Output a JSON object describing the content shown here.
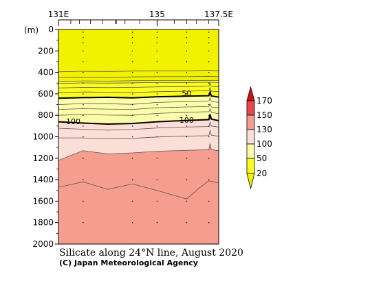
{
  "chart_data": {
    "type": "contour",
    "title": "Silicate along 24°N line, August 2020",
    "credit": "(C) Japan Meteorological Agency",
    "ylabel": "(m)",
    "x_range": [
      131,
      137.5
    ],
    "x_ticks": [
      {
        "value": 131,
        "label": "131E"
      },
      {
        "value": 135,
        "label": "135"
      },
      {
        "value": 137.5,
        "label": "137.5E"
      }
    ],
    "y_range": [
      0,
      2000
    ],
    "y_ticks": [
      0,
      200,
      400,
      600,
      800,
      1000,
      1200,
      1400,
      1600,
      1800,
      2000
    ],
    "station_longitudes": [
      132,
      134,
      135,
      136.2,
      137.1
    ],
    "station_marks_top": [
      131,
      131.5,
      131.85,
      132.3,
      132.8,
      133.3,
      133.35,
      133.7,
      134.3,
      135,
      135.7,
      136.2,
      136.6,
      137.1
    ],
    "sample_depths": [
      25,
      75,
      125,
      200,
      300,
      400,
      500,
      600,
      700,
      800,
      900,
      1000,
      1200,
      1400,
      1600,
      1800,
      2000
    ],
    "levels": [
      20,
      50,
      100,
      130,
      150,
      170
    ],
    "colors": {
      "below_20": "#f2f200",
      "20_50": "#fcfc20",
      "50_100": "#fcfcaa",
      "100_130": "#fcded8",
      "130_150": "#f59e8f",
      "150_170": "#e84848",
      "above_170": "#d41010"
    },
    "legend": {
      "labels": [
        "170",
        "150",
        "130",
        "100",
        "50",
        "20"
      ]
    },
    "boundaries": [
      {
        "fill_below": "#fcfc20",
        "points": [
          [
            131,
            485
          ],
          [
            132,
            480
          ],
          [
            133,
            482
          ],
          [
            134,
            478
          ],
          [
            135,
            476
          ],
          [
            136.2,
            476
          ],
          [
            137.1,
            475
          ],
          [
            137.5,
            475
          ]
        ]
      },
      {
        "fill_below": "#fcfcaa",
        "bold": true,
        "points": [
          [
            131,
            640
          ],
          [
            132,
            635
          ],
          [
            133,
            632
          ],
          [
            134,
            637
          ],
          [
            135,
            627
          ],
          [
            136.2,
            622
          ],
          [
            137.1,
            618
          ],
          [
            137.15,
            582
          ],
          [
            137.2,
            620
          ],
          [
            137.5,
            630
          ]
        ]
      },
      {
        "fill_below": "#fcded8",
        "bold": true,
        "points": [
          [
            131,
            860
          ],
          [
            132,
            872
          ],
          [
            133,
            882
          ],
          [
            134,
            876
          ],
          [
            135,
            860
          ],
          [
            136,
            850
          ],
          [
            137.1,
            840
          ],
          [
            137.15,
            790
          ],
          [
            137.2,
            835
          ],
          [
            137.5,
            850
          ]
        ]
      },
      {
        "fill_below": "#f59e8f",
        "points": [
          [
            131,
            1220
          ],
          [
            132,
            1130
          ],
          [
            133,
            1160
          ],
          [
            134,
            1150
          ],
          [
            135,
            1135
          ],
          [
            136,
            1128
          ],
          [
            137.1,
            1120
          ],
          [
            137.15,
            1060
          ],
          [
            137.2,
            1120
          ],
          [
            137.5,
            1130
          ]
        ]
      }
    ],
    "contour_lines": [
      {
        "bold": false,
        "points": [
          [
            131,
            395
          ],
          [
            132,
            390
          ],
          [
            133,
            392
          ],
          [
            134,
            388
          ],
          [
            135,
            385
          ],
          [
            136.2,
            385
          ],
          [
            137.1,
            380
          ],
          [
            137.5,
            385
          ]
        ]
      },
      {
        "bold": false,
        "points": [
          [
            131,
            450
          ],
          [
            132,
            446
          ],
          [
            133,
            447
          ],
          [
            134,
            442
          ],
          [
            135,
            440
          ],
          [
            136.2,
            440
          ],
          [
            137.1,
            437
          ],
          [
            137.5,
            440
          ]
        ]
      },
      {
        "bold": false,
        "points": [
          [
            131,
            505
          ],
          [
            132,
            498
          ],
          [
            133,
            500
          ],
          [
            134,
            497
          ],
          [
            135,
            494
          ],
          [
            136.2,
            494
          ],
          [
            137.1,
            492
          ],
          [
            137.5,
            495
          ]
        ]
      },
      {
        "bold": false,
        "points": [
          [
            131,
            545
          ],
          [
            132,
            540
          ],
          [
            133,
            542
          ],
          [
            134,
            540
          ],
          [
            135,
            535
          ],
          [
            136.2,
            532
          ],
          [
            137.1,
            528
          ],
          [
            137.15,
            500
          ],
          [
            137.2,
            530
          ],
          [
            137.5,
            535
          ]
        ]
      },
      {
        "bold": false,
        "points": [
          [
            131,
            590
          ],
          [
            132,
            582
          ],
          [
            133,
            585
          ],
          [
            134,
            588
          ],
          [
            135,
            580
          ],
          [
            136.2,
            575
          ],
          [
            137.1,
            570
          ],
          [
            137.15,
            540
          ],
          [
            137.2,
            575
          ],
          [
            137.5,
            580
          ]
        ]
      },
      {
        "bold": false,
        "points": [
          [
            131,
            700
          ],
          [
            132,
            690
          ],
          [
            133,
            692
          ],
          [
            134,
            698
          ],
          [
            135,
            680
          ],
          [
            136.2,
            672
          ],
          [
            137.1,
            668
          ],
          [
            137.15,
            635
          ],
          [
            137.2,
            670
          ],
          [
            137.5,
            680
          ]
        ]
      },
      {
        "bold": false,
        "points": [
          [
            131,
            745
          ],
          [
            132,
            738
          ],
          [
            133,
            742
          ],
          [
            134,
            745
          ],
          [
            135,
            730
          ],
          [
            136.2,
            722
          ],
          [
            137.1,
            718
          ],
          [
            137.15,
            690
          ],
          [
            137.2,
            722
          ],
          [
            137.5,
            730
          ]
        ]
      },
      {
        "bold": false,
        "points": [
          [
            131,
            800
          ],
          [
            132,
            792
          ],
          [
            133,
            798
          ],
          [
            134,
            800
          ],
          [
            135,
            782
          ],
          [
            136.2,
            772
          ],
          [
            137.1,
            766
          ],
          [
            137.15,
            740
          ],
          [
            137.2,
            772
          ],
          [
            137.5,
            785
          ]
        ]
      },
      {
        "bold": false,
        "points": [
          [
            131,
            920
          ],
          [
            132,
            930
          ],
          [
            133,
            938
          ],
          [
            134,
            932
          ],
          [
            135,
            918
          ],
          [
            136,
            910
          ],
          [
            137.1,
            905
          ],
          [
            137.15,
            865
          ],
          [
            137.2,
            900
          ],
          [
            137.5,
            910
          ]
        ]
      },
      {
        "bold": false,
        "points": [
          [
            131,
            1010
          ],
          [
            132,
            1010
          ],
          [
            133,
            1020
          ],
          [
            134,
            1015
          ],
          [
            135,
            1002
          ],
          [
            136,
            995
          ],
          [
            137.1,
            990
          ],
          [
            137.15,
            940
          ],
          [
            137.2,
            985
          ],
          [
            137.5,
            995
          ]
        ]
      },
      {
        "bold": false,
        "points": [
          [
            131,
            1470
          ],
          [
            132,
            1420
          ],
          [
            133,
            1490
          ],
          [
            134,
            1440
          ],
          [
            135,
            1500
          ],
          [
            136.2,
            1580
          ],
          [
            136.7,
            1480
          ],
          [
            137.1,
            1410
          ],
          [
            137.5,
            1430
          ]
        ]
      }
    ],
    "contour_labels": [
      {
        "text": "50",
        "x": 136.2,
        "y": 595
      },
      {
        "text": "100",
        "x": 131.6,
        "y": 855
      },
      {
        "text": "100",
        "x": 136.2,
        "y": 845
      }
    ]
  }
}
